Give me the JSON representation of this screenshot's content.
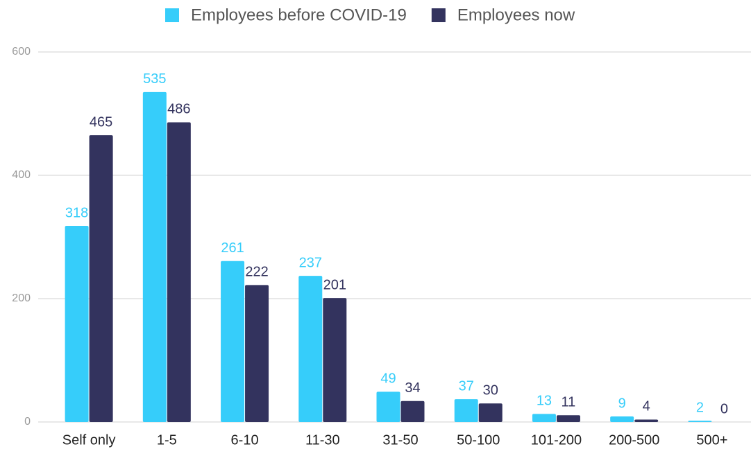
{
  "chart_data": {
    "type": "bar",
    "categories": [
      "Self only",
      "1-5",
      "6-10",
      "11-30",
      "31-50",
      "50-100",
      "101-200",
      "200-500",
      "500+"
    ],
    "series": [
      {
        "name": "Employees before COVID-19",
        "color": "#36cdfa",
        "values": [
          318,
          535,
          261,
          237,
          49,
          37,
          13,
          9,
          2
        ]
      },
      {
        "name": "Employees now",
        "color": "#33335e",
        "values": [
          465,
          486,
          222,
          201,
          34,
          30,
          11,
          4,
          0
        ]
      }
    ],
    "ylim": [
      0,
      600
    ],
    "yticks": [
      0,
      200,
      400,
      600
    ],
    "grid": true,
    "legend": "top"
  }
}
